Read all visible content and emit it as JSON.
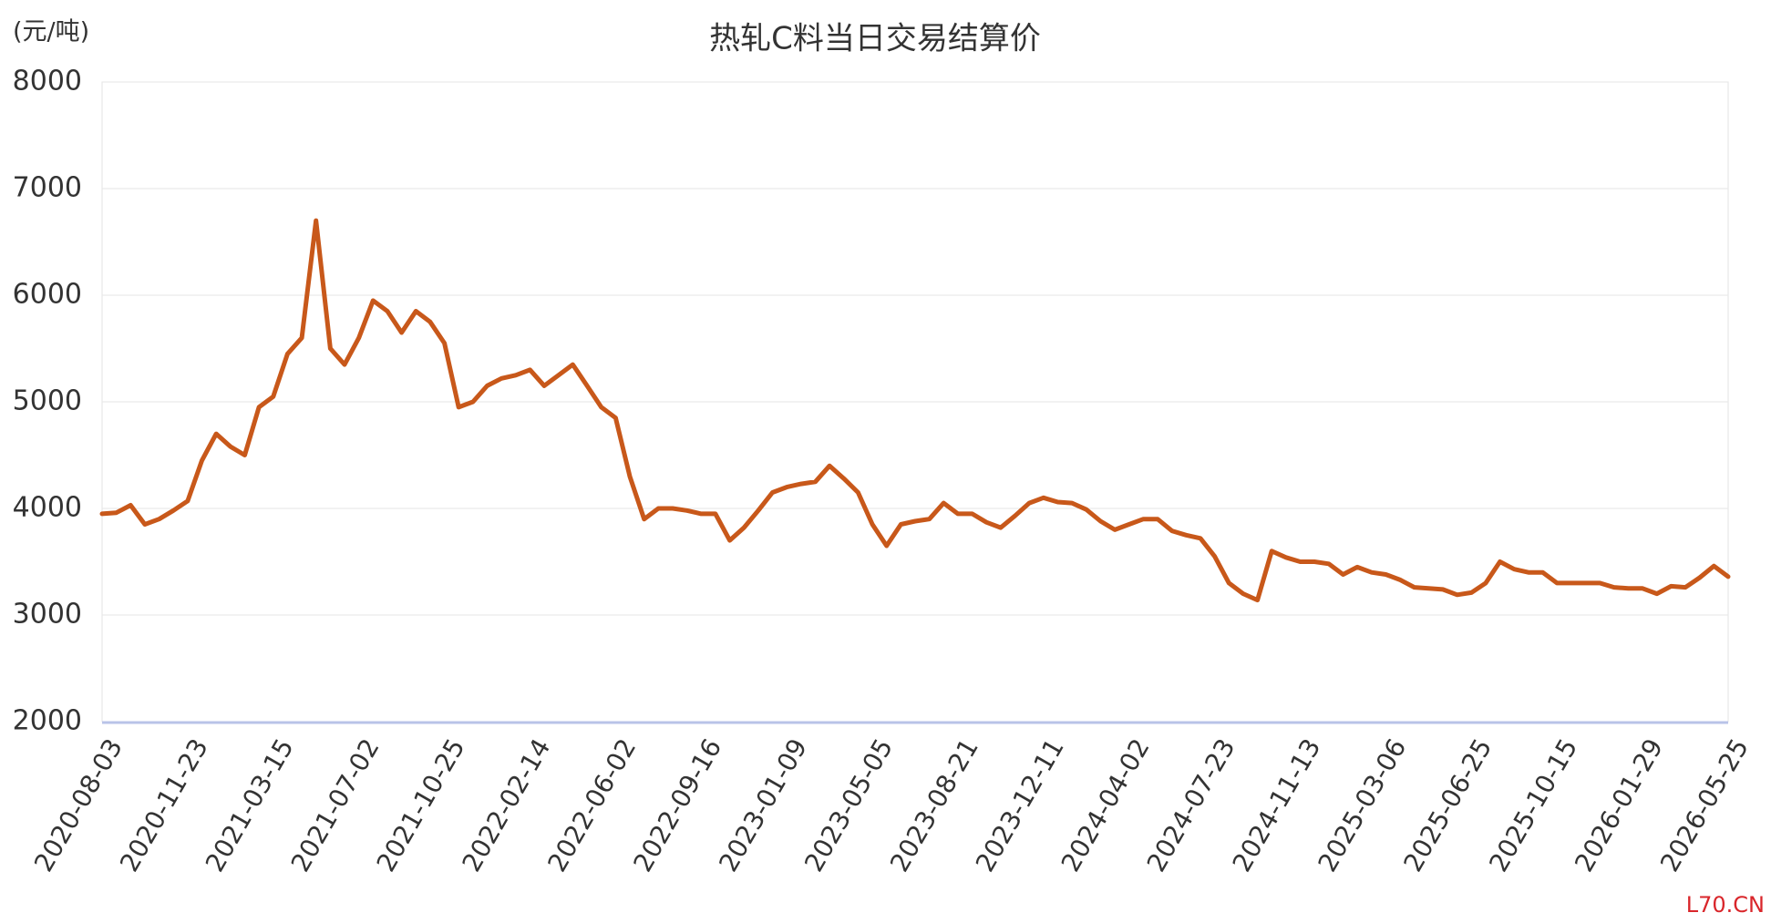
{
  "chart_data": {
    "type": "line",
    "title": "热轧C料当日交易结算价",
    "y_axis_label": "(元/吨)",
    "watermark": "L70.CN",
    "categories": [
      "2020-08-03",
      null,
      null,
      null,
      null,
      null,
      "2020-11-23",
      null,
      null,
      null,
      null,
      null,
      "2021-03-15",
      null,
      null,
      null,
      null,
      null,
      "2021-07-02",
      null,
      null,
      null,
      null,
      null,
      "2021-10-25",
      null,
      null,
      null,
      null,
      null,
      "2022-02-14",
      null,
      null,
      null,
      null,
      null,
      "2022-06-02",
      null,
      null,
      null,
      null,
      null,
      "2022-09-16",
      null,
      null,
      null,
      null,
      null,
      "2023-01-09",
      null,
      null,
      null,
      null,
      null,
      "2023-05-05",
      null,
      null,
      null,
      null,
      null,
      "2023-08-21",
      null,
      null,
      null,
      null,
      null,
      "2023-12-11",
      null,
      null,
      null,
      null,
      null,
      "2024-04-02",
      null,
      null,
      null,
      null,
      null,
      "2024-07-23",
      null,
      null,
      null,
      null,
      null,
      "2024-11-13",
      null,
      null,
      null,
      null,
      null,
      "2025-03-06",
      null,
      null,
      null,
      null,
      null,
      "2025-06-25",
      null,
      null,
      null,
      null,
      null,
      "2025-10-15",
      null,
      null,
      null,
      null,
      null,
      "2026-01-29",
      null,
      null,
      null,
      null,
      null,
      "2026-05-25"
    ],
    "values": [
      3950,
      3960,
      4030,
      3850,
      3900,
      3980,
      4070,
      4450,
      4700,
      4580,
      4500,
      4950,
      5050,
      5450,
      5600,
      6700,
      5500,
      5350,
      5600,
      5950,
      5850,
      5650,
      5850,
      5750,
      5550,
      4950,
      5000,
      5150,
      5220,
      5250,
      5300,
      5150,
      5250,
      5350,
      5150,
      4950,
      4850,
      4300,
      3900,
      4000,
      4000,
      3980,
      3950,
      3950,
      3700,
      3820,
      3980,
      4150,
      4200,
      4230,
      4250,
      4400,
      4280,
      4150,
      3850,
      3650,
      3850,
      3880,
      3900,
      4050,
      3950,
      3950,
      3870,
      3820,
      3930,
      4050,
      4100,
      4060,
      4050,
      3990,
      3880,
      3800,
      3850,
      3900,
      3900,
      3790,
      3750,
      3720,
      3550,
      3300,
      3200,
      3140,
      3600,
      3540,
      3500,
      3500,
      3480,
      3380,
      3450,
      3400,
      3380,
      3330,
      3260,
      3250,
      3240,
      3190,
      3210,
      3300,
      3500,
      3430,
      3400,
      3400,
      3300,
      3300,
      3300,
      3300,
      3260,
      3250,
      3250,
      3200,
      3270,
      3260,
      3350,
      3460,
      3360
    ],
    "color": "#c8581a",
    "ylim": [
      2000,
      8000
    ],
    "yticks": [
      2000,
      3000,
      4000,
      5000,
      6000,
      7000,
      8000
    ],
    "grid": true
  }
}
